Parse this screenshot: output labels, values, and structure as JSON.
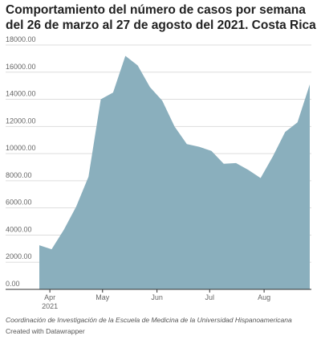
{
  "chart_data": {
    "type": "area",
    "title": "Comportamiento del número de casos por semana del 26 de marzo al 27 de agosto del 2021. Costa Rica",
    "x": [
      "2021-03-26",
      "2021-04-02",
      "2021-04-09",
      "2021-04-16",
      "2021-04-23",
      "2021-04-30",
      "2021-05-07",
      "2021-05-14",
      "2021-05-21",
      "2021-05-28",
      "2021-06-04",
      "2021-06-11",
      "2021-06-18",
      "2021-06-25",
      "2021-07-02",
      "2021-07-09",
      "2021-07-16",
      "2021-07-23",
      "2021-07-30",
      "2021-08-06",
      "2021-08-13",
      "2021-08-20",
      "2021-08-27"
    ],
    "values": [
      3250,
      2950,
      4400,
      6100,
      8300,
      14000,
      14500,
      17200,
      16500,
      14900,
      13900,
      12000,
      10700,
      10500,
      10200,
      9250,
      9300,
      8800,
      8200,
      9800,
      11600,
      12300,
      15100
    ],
    "color": "#8aafbd",
    "xlim": [
      "2021-03-26",
      "2021-08-27"
    ],
    "xticks": [
      {
        "value": "2021-04-01",
        "label": "Apr 2021"
      },
      {
        "value": "2021-05-01",
        "label": "May"
      },
      {
        "value": "2021-06-01",
        "label": "Jun"
      },
      {
        "value": "2021-07-01",
        "label": "Jul"
      },
      {
        "value": "2021-08-01",
        "label": "Aug"
      }
    ],
    "ylim": [
      0,
      18000
    ],
    "yticks": [
      {
        "value": 0,
        "label": "0.00"
      },
      {
        "value": 2000,
        "label": "2000.00"
      },
      {
        "value": 4000,
        "label": "4000.00"
      },
      {
        "value": 6000,
        "label": "6000.00"
      },
      {
        "value": 8000,
        "label": "8000.00"
      },
      {
        "value": 10000,
        "label": "10000.00"
      },
      {
        "value": 12000,
        "label": "12000.00"
      },
      {
        "value": 14000,
        "label": "14000.00"
      },
      {
        "value": 16000,
        "label": "16000.00"
      },
      {
        "value": 18000,
        "label": "18000.00"
      }
    ],
    "grid": true,
    "source": "Coordinación de Investigación de la Escuela de Medicina de la Universidad Hispanoamericana",
    "credit": "Created with Datawrapper"
  }
}
